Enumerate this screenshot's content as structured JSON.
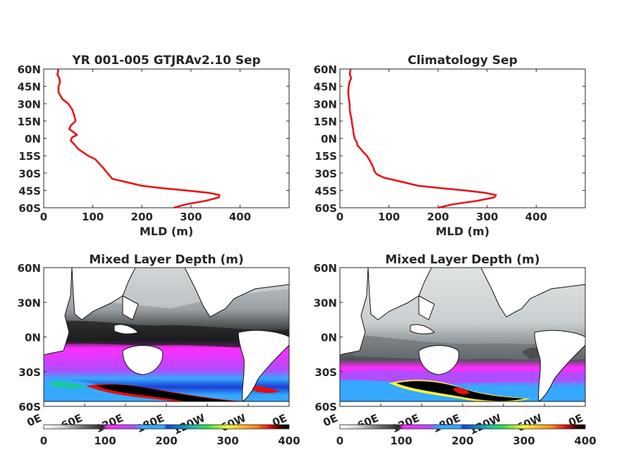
{
  "chart_data": [
    {
      "type": "line",
      "title": "YR 001-005 GTJRAv2.10 Sep",
      "xlabel": "MLD (m)",
      "ylabel": "",
      "xlim": [
        0,
        500
      ],
      "ylim": [
        -60,
        60
      ],
      "xticks": [
        "0",
        "100",
        "200",
        "300",
        "400"
      ],
      "yticks": [
        "60N",
        "45N",
        "30N",
        "15N",
        "0N",
        "15S",
        "30S",
        "45S",
        "60S"
      ],
      "color": "#e8161a",
      "series": [
        {
          "x": [
            265,
            290,
            330,
            357,
            358,
            335,
            290,
            240,
            200,
            160,
            140,
            130,
            120,
            105,
            90,
            80,
            70,
            62,
            55,
            58,
            68,
            62,
            52,
            55,
            65,
            62,
            58,
            50,
            38,
            30,
            30,
            33,
            32,
            28,
            30
          ],
          "y": [
            -60,
            -57,
            -54,
            -51,
            -49,
            -47,
            -45,
            -43,
            -41,
            -37,
            -35,
            -30,
            -25,
            -18,
            -15,
            -12,
            -9,
            -5,
            -2,
            1,
            3,
            5,
            8,
            11,
            15,
            20,
            25,
            30,
            34,
            40,
            45,
            48,
            52,
            55,
            60
          ]
        }
      ]
    },
    {
      "type": "line",
      "title": "Climatology Sep",
      "xlabel": "MLD (m)",
      "ylabel": "",
      "xlim": [
        0,
        500
      ],
      "ylim": [
        -60,
        60
      ],
      "xticks": [
        "0",
        "100",
        "200",
        "300",
        "400"
      ],
      "yticks": [
        "60N",
        "45N",
        "30N",
        "15N",
        "0N",
        "15S",
        "30S",
        "45S",
        "60S"
      ],
      "color": "#e8161a",
      "series": [
        {
          "x": [
            200,
            230,
            280,
            315,
            318,
            295,
            255,
            205,
            160,
            120,
            90,
            75,
            70,
            68,
            62,
            55,
            48,
            42,
            36,
            34,
            30,
            28,
            27,
            25,
            24,
            22,
            20,
            20,
            18,
            17,
            18,
            20,
            23,
            20,
            22
          ],
          "y": [
            -60,
            -57,
            -54,
            -51,
            -49,
            -47,
            -45,
            -43,
            -41,
            -37,
            -34,
            -31,
            -28,
            -25,
            -20,
            -15,
            -12,
            -9,
            -6,
            -3,
            0,
            4,
            8,
            12,
            16,
            20,
            25,
            30,
            35,
            40,
            45,
            49,
            52,
            56,
            60
          ]
        }
      ]
    },
    {
      "type": "heatmap",
      "title": "Mixed Layer Depth (m)",
      "yticks": [
        "60N",
        "30N",
        "0N",
        "30S",
        "60S"
      ],
      "xticks": [
        "0E",
        "60E",
        "120E",
        "180E",
        "120W",
        "60W",
        "0E"
      ],
      "colorbar": {
        "ticks": [
          "0",
          "100",
          "200",
          "300",
          "400"
        ],
        "range": [
          0,
          400
        ],
        "colors": [
          "#ffffff",
          "#c9ced0",
          "#6e7376",
          "#2a2a2d",
          "#1a1a1a",
          "#ff2bff",
          "#b14dff",
          "#37a8ff",
          "#1a3fd6",
          "#19c8a0",
          "#2fd84e",
          "#f6f43a",
          "#ff8a1a",
          "#e01010",
          "#2a0000",
          "#000000"
        ]
      }
    },
    {
      "type": "heatmap",
      "title": "Mixed Layer Depth (m)",
      "yticks": [
        "60N",
        "30N",
        "0N",
        "30S",
        "60S"
      ],
      "xticks": [
        "0E",
        "60E",
        "120E",
        "180E",
        "120W",
        "60W",
        "0E"
      ],
      "colorbar": {
        "ticks": [
          "0",
          "100",
          "200",
          "300",
          "400"
        ],
        "range": [
          0,
          400
        ],
        "colors": [
          "#ffffff",
          "#c9ced0",
          "#6e7376",
          "#2a2a2d",
          "#1a1a1a",
          "#ff2bff",
          "#b14dff",
          "#37a8ff",
          "#1a3fd6",
          "#19c8a0",
          "#2fd84e",
          "#f6f43a",
          "#ff8a1a",
          "#e01010",
          "#2a0000",
          "#000000"
        ]
      }
    }
  ]
}
